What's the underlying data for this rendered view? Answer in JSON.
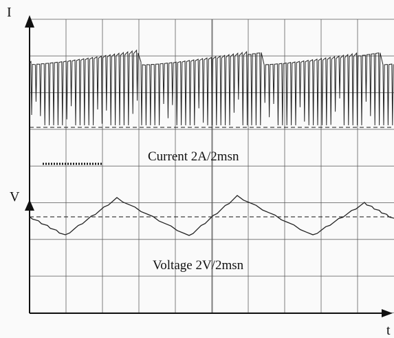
{
  "axes": {
    "current_axis": "I",
    "voltage_axis": "V",
    "time_axis": "t"
  },
  "captions": {
    "current": "Current 2A/2msn",
    "voltage": "Voltage 2V/2msn"
  }
}
